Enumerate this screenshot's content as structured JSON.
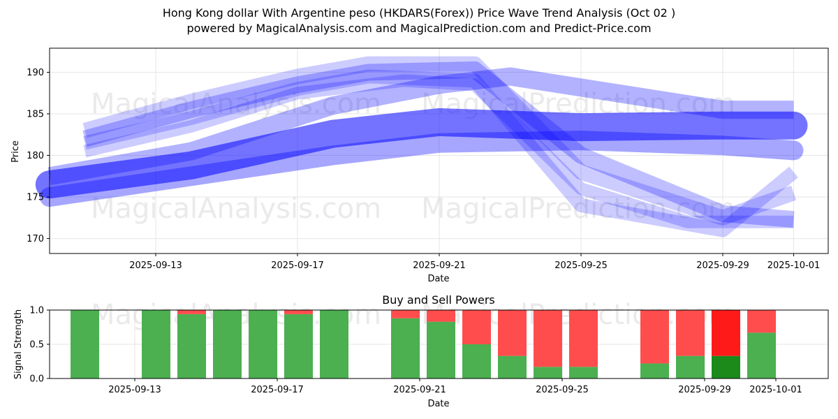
{
  "title_line1": "Hong Kong dollar With Argentine peso (HKDARS(Forex)) Price Wave Trend Analysis (Oct 02 )",
  "title_line2": "powered by MagicalAnalysis.com and MagicalPrediction.com and Predict-Price.com",
  "watermarks": [
    "MagicalAnalysis.com",
    "MagicalPrediction.com"
  ],
  "chart_data": [
    {
      "type": "line",
      "xlabel": "Date",
      "ylabel": "Price",
      "ylim": [
        168.2,
        192.9
      ],
      "yticks": [
        170,
        175,
        180,
        185,
        190
      ],
      "xticks": [
        "2025-09-13",
        "2025-09-17",
        "2025-09-21",
        "2025-09-25",
        "2025-09-29",
        "2025-10-01"
      ],
      "grid": true,
      "series_color": "#0000ff",
      "series": [
        {
          "x": [
            "2025-09-10",
            "2025-09-14",
            "2025-09-18",
            "2025-09-21",
            "2025-09-25",
            "2025-09-29",
            "2025-10-01"
          ],
          "values": [
            176.5,
            178.8,
            182.6,
            184.0,
            183.4,
            183.6,
            183.6
          ]
        },
        {
          "x": [
            "2025-09-10",
            "2025-09-14",
            "2025-09-18",
            "2025-09-21",
            "2025-09-25",
            "2025-09-29",
            "2025-10-01"
          ],
          "values": [
            175.0,
            177.5,
            180.0,
            181.5,
            181.8,
            181.2,
            180.6
          ]
        },
        {
          "x": [
            "2025-09-10",
            "2025-09-14",
            "2025-09-18",
            "2025-09-21",
            "2025-09-23",
            "2025-09-26",
            "2025-09-29",
            "2025-10-01"
          ],
          "values": [
            177.5,
            180.5,
            186.0,
            188.5,
            189.5,
            187.5,
            185.5,
            185.5
          ]
        },
        {
          "x": [
            "2025-09-11",
            "2025-09-14",
            "2025-09-17",
            "2025-09-19",
            "2025-09-22",
            "2025-09-25",
            "2025-09-29",
            "2025-10-01"
          ],
          "values": [
            182.0,
            185.5,
            188.5,
            190.0,
            190.3,
            180.0,
            173.0,
            172.3
          ]
        },
        {
          "x": [
            "2025-09-11",
            "2025-09-14",
            "2025-09-17",
            "2025-09-19",
            "2025-09-22",
            "2025-09-25",
            "2025-09-29",
            "2025-10-01"
          ],
          "values": [
            183.0,
            186.5,
            189.5,
            191.0,
            191.0,
            178.0,
            172.5,
            175.5
          ]
        },
        {
          "x": [
            "2025-09-11",
            "2025-09-14",
            "2025-09-17",
            "2025-09-19",
            "2025-09-22",
            "2025-09-25",
            "2025-09-29",
            "2025-10-01"
          ],
          "values": [
            181.5,
            184.5,
            188.0,
            189.5,
            189.0,
            174.0,
            171.0,
            178.0
          ]
        },
        {
          "x": [
            "2025-09-11",
            "2025-09-14",
            "2025-09-17",
            "2025-09-20",
            "2025-09-22",
            "2025-09-25",
            "2025-09-28",
            "2025-10-01"
          ],
          "values": [
            180.5,
            183.5,
            187.5,
            189.0,
            188.5,
            176.0,
            172.0,
            172.0
          ]
        }
      ]
    },
    {
      "type": "bar",
      "title": "Buy and Sell Powers",
      "xlabel": "Date",
      "ylabel": "Signal Strength",
      "ylim": [
        0,
        1
      ],
      "yticks": [
        "0.0",
        "0.5",
        "1.0"
      ],
      "xticks": [
        "2025-09-13",
        "2025-09-17",
        "2025-09-21",
        "2025-09-25",
        "2025-09-29",
        "2025-10-01"
      ],
      "colors": {
        "buy": "#4caf50",
        "sell": "#ff4d4d",
        "buy_strong": "#1b8a1b",
        "sell_strong": "#ff1a1a"
      },
      "categories": [
        "2025-09-12",
        "2025-09-14",
        "2025-09-15",
        "2025-09-16",
        "2025-09-17",
        "2025-09-18",
        "2025-09-19",
        "2025-09-21",
        "2025-09-22",
        "2025-09-23",
        "2025-09-24",
        "2025-09-25",
        "2025-09-26",
        "2025-09-28",
        "2025-09-29",
        "2025-09-30",
        "2025-10-01"
      ],
      "series": [
        {
          "name": "Buy",
          "values": [
            1.0,
            1.0,
            0.94,
            1.0,
            1.0,
            0.94,
            1.0,
            0.88,
            0.83,
            0.5,
            0.33,
            0.17,
            0.17,
            0.22,
            0.33,
            0.33,
            0.67
          ]
        },
        {
          "name": "Sell",
          "values": [
            0.0,
            0.0,
            0.06,
            0.0,
            0.0,
            0.06,
            0.0,
            0.12,
            0.17,
            0.5,
            0.67,
            0.83,
            0.83,
            0.78,
            0.67,
            0.67,
            0.33
          ]
        }
      ],
      "strong_index": 15
    }
  ]
}
